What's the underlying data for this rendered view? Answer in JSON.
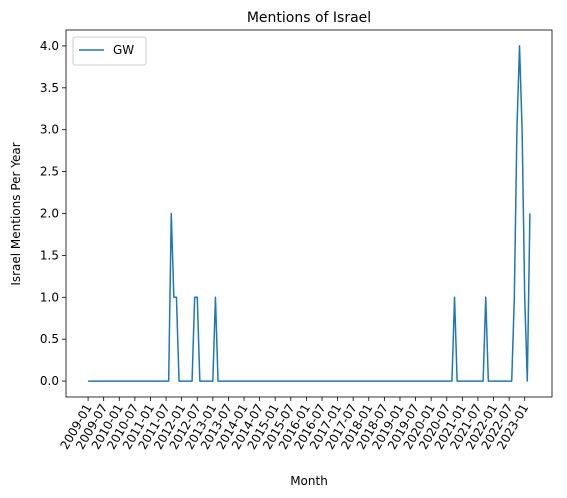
{
  "chart_data": {
    "type": "line",
    "title": "Mentions of Israel",
    "xlabel": "Month",
    "ylabel": "Israel Mentions Per Year",
    "ylim": [
      -0.19,
      4.19
    ],
    "yticks": [
      "0.0",
      "0.5",
      "1.0",
      "1.5",
      "2.0",
      "2.5",
      "3.0",
      "3.5",
      "4.0"
    ],
    "x_tick_labels": [
      "2009-01",
      "2009-07",
      "2010-01",
      "2010-07",
      "2011-01",
      "2011-07",
      "2012-01",
      "2012-07",
      "2013-01",
      "2013-07",
      "2014-01",
      "2014-07",
      "2015-01",
      "2015-07",
      "2016-01",
      "2016-07",
      "2017-01",
      "2017-07",
      "2018-01",
      "2018-07",
      "2019-01",
      "2019-07",
      "2020-01",
      "2020-07",
      "2021-01",
      "2021-07",
      "2022-01",
      "2022-07",
      "2023-01"
    ],
    "legend": {
      "position": "upper-left",
      "entries": [
        "GW"
      ]
    },
    "series": [
      {
        "name": "GW",
        "color": "#1f77b4",
        "points": [
          [
            "2009-01",
            0
          ],
          [
            "2011-08",
            0
          ],
          [
            "2011-09",
            2
          ],
          [
            "2011-10",
            1
          ],
          [
            "2011-11",
            1
          ],
          [
            "2011-12",
            0
          ],
          [
            "2012-05",
            0
          ],
          [
            "2012-06",
            1
          ],
          [
            "2012-07",
            1
          ],
          [
            "2012-08",
            0
          ],
          [
            "2013-01",
            0
          ],
          [
            "2013-02",
            1
          ],
          [
            "2013-03",
            0
          ],
          [
            "2020-09",
            0
          ],
          [
            "2020-10",
            1
          ],
          [
            "2020-11",
            0
          ],
          [
            "2021-09",
            0
          ],
          [
            "2021-10",
            1
          ],
          [
            "2021-11",
            0
          ],
          [
            "2022-08",
            0
          ],
          [
            "2022-09",
            1
          ],
          [
            "2022-10",
            3
          ],
          [
            "2022-11",
            4
          ],
          [
            "2022-12",
            3
          ],
          [
            "2023-01",
            1
          ],
          [
            "2023-02",
            0
          ],
          [
            "2023-03",
            2
          ]
        ]
      }
    ]
  }
}
